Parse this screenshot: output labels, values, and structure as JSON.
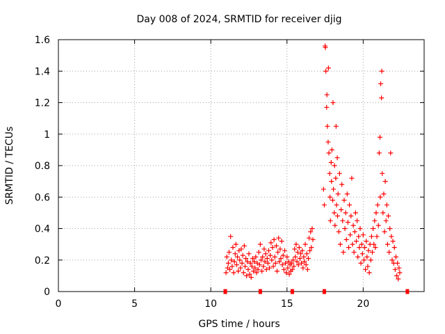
{
  "chart_data": {
    "type": "scatter",
    "title": "Day 008 of 2024, SRMTID for receiver djig",
    "xlabel": "GPS time / hours",
    "ylabel": "SRMTID / TECUs",
    "xlim": [
      0,
      24
    ],
    "ylim": [
      0,
      1.6
    ],
    "xticks": [
      0,
      5,
      10,
      15,
      20
    ],
    "yticks": [
      0,
      0.2,
      0.4,
      0.6,
      0.8,
      1,
      1.2,
      1.4,
      1.6
    ],
    "xtick_labels": [
      "0",
      "5",
      "10",
      "15",
      "20"
    ],
    "ytick_labels": [
      "0",
      "0.2",
      "0.4",
      "0.6",
      "0.8",
      "1",
      "1.2",
      "1.4",
      "1.6"
    ],
    "grid": true,
    "marker": "plus",
    "color": "#ff0000",
    "series": [
      {
        "name": "SRMTID",
        "points": [
          [
            11.0,
            0.12
          ],
          [
            11.05,
            0.22
          ],
          [
            11.1,
            0.15
          ],
          [
            11.15,
            0.18
          ],
          [
            11.2,
            0.25
          ],
          [
            11.25,
            0.14
          ],
          [
            11.3,
            0.35
          ],
          [
            11.35,
            0.2
          ],
          [
            11.4,
            0.16
          ],
          [
            11.45,
            0.28
          ],
          [
            11.5,
            0.12
          ],
          [
            11.55,
            0.19
          ],
          [
            11.6,
            0.24
          ],
          [
            11.65,
            0.3
          ],
          [
            11.7,
            0.17
          ],
          [
            11.75,
            0.22
          ],
          [
            11.8,
            0.13
          ],
          [
            11.85,
            0.26
          ],
          [
            11.9,
            0.2
          ],
          [
            11.95,
            0.15
          ],
          [
            12.0,
            0.27
          ],
          [
            12.05,
            0.18
          ],
          [
            12.1,
            0.23
          ],
          [
            12.15,
            0.12
          ],
          [
            12.2,
            0.29
          ],
          [
            12.25,
            0.16
          ],
          [
            12.3,
            0.21
          ],
          [
            12.35,
            0.1
          ],
          [
            12.4,
            0.19
          ],
          [
            12.45,
            0.14
          ],
          [
            12.5,
            0.24
          ],
          [
            12.55,
            0.11
          ],
          [
            12.6,
            0.18
          ],
          [
            12.65,
            0.09
          ],
          [
            12.7,
            0.16
          ],
          [
            12.75,
            0.21
          ],
          [
            12.8,
            0.13
          ],
          [
            12.85,
            0.19
          ],
          [
            12.9,
            0.15
          ],
          [
            12.95,
            0.22
          ],
          [
            13.0,
            0.12
          ],
          [
            13.05,
            0.18
          ],
          [
            13.1,
            0.14
          ],
          [
            13.15,
            0.25
          ],
          [
            13.2,
            0.17
          ],
          [
            13.25,
            0.3
          ],
          [
            13.3,
            0.2
          ],
          [
            13.35,
            0.13
          ],
          [
            13.4,
            0.22
          ],
          [
            13.45,
            0.16
          ],
          [
            13.5,
            0.27
          ],
          [
            13.55,
            0.19
          ],
          [
            13.6,
            0.24
          ],
          [
            13.65,
            0.14
          ],
          [
            13.7,
            0.21
          ],
          [
            13.75,
            0.18
          ],
          [
            13.8,
            0.26
          ],
          [
            13.85,
            0.15
          ],
          [
            13.9,
            0.23
          ],
          [
            13.95,
            0.31
          ],
          [
            14.0,
            0.2
          ],
          [
            14.05,
            0.28
          ],
          [
            14.1,
            0.16
          ],
          [
            14.15,
            0.33
          ],
          [
            14.2,
            0.22
          ],
          [
            14.25,
            0.18
          ],
          [
            14.3,
            0.29
          ],
          [
            14.35,
            0.13
          ],
          [
            14.4,
            0.25
          ],
          [
            14.45,
            0.34
          ],
          [
            14.5,
            0.19
          ],
          [
            14.55,
            0.27
          ],
          [
            14.6,
            0.21
          ],
          [
            14.65,
            0.32
          ],
          [
            14.7,
            0.17
          ],
          [
            14.75,
            0.23
          ],
          [
            14.8,
            0.14
          ],
          [
            14.85,
            0.26
          ],
          [
            14.9,
            0.18
          ],
          [
            14.95,
            0.12
          ],
          [
            15.0,
            0.22
          ],
          [
            15.05,
            0.15
          ],
          [
            15.1,
            0.19
          ],
          [
            15.15,
            0.11
          ],
          [
            15.2,
            0.17
          ],
          [
            15.25,
            0.13
          ],
          [
            15.3,
            0.18
          ],
          [
            15.35,
            0.14
          ],
          [
            15.4,
            0.2
          ],
          [
            15.45,
            0.16
          ],
          [
            15.5,
            0.27
          ],
          [
            15.55,
            0.22
          ],
          [
            15.6,
            0.3
          ],
          [
            15.65,
            0.19
          ],
          [
            15.7,
            0.25
          ],
          [
            15.75,
            0.17
          ],
          [
            15.8,
            0.28
          ],
          [
            15.85,
            0.21
          ],
          [
            15.9,
            0.24
          ],
          [
            15.95,
            0.18
          ],
          [
            16.0,
            0.26
          ],
          [
            16.05,
            0.15
          ],
          [
            16.1,
            0.22
          ],
          [
            16.15,
            0.19
          ],
          [
            16.2,
            0.3
          ],
          [
            16.25,
            0.17
          ],
          [
            16.3,
            0.24
          ],
          [
            16.35,
            0.14
          ],
          [
            16.4,
            0.21
          ],
          [
            16.45,
            0.34
          ],
          [
            16.5,
            0.26
          ],
          [
            16.55,
            0.38
          ],
          [
            16.6,
            0.28
          ],
          [
            16.65,
            0.4
          ],
          [
            16.7,
            0.33
          ],
          [
            17.4,
            0.65
          ],
          [
            17.45,
            0.55
          ],
          [
            17.5,
            1.56
          ],
          [
            17.52,
            1.55
          ],
          [
            17.55,
            1.4
          ],
          [
            17.6,
            1.17
          ],
          [
            17.62,
            1.25
          ],
          [
            17.65,
            1.05
          ],
          [
            17.7,
            0.95
          ],
          [
            17.72,
            1.42
          ],
          [
            17.75,
            0.88
          ],
          [
            17.8,
            0.75
          ],
          [
            17.82,
            0.6
          ],
          [
            17.85,
            0.45
          ],
          [
            17.9,
            0.82
          ],
          [
            17.92,
            0.7
          ],
          [
            17.95,
            0.9
          ],
          [
            18.0,
            0.58
          ],
          [
            18.02,
            1.2
          ],
          [
            18.05,
            0.65
          ],
          [
            18.1,
            0.5
          ],
          [
            18.12,
            0.8
          ],
          [
            18.15,
            0.42
          ],
          [
            18.2,
            0.72
          ],
          [
            18.22,
            1.05
          ],
          [
            18.25,
            0.55
          ],
          [
            18.3,
            0.85
          ],
          [
            18.32,
            0.48
          ],
          [
            18.35,
            0.62
          ],
          [
            18.4,
            0.38
          ],
          [
            18.45,
            0.75
          ],
          [
            18.5,
            0.3
          ],
          [
            18.55,
            0.52
          ],
          [
            18.6,
            0.68
          ],
          [
            18.65,
            0.45
          ],
          [
            18.7,
            0.25
          ],
          [
            18.75,
            0.58
          ],
          [
            18.8,
            0.4
          ],
          [
            18.85,
            0.5
          ],
          [
            18.9,
            0.33
          ],
          [
            18.95,
            0.62
          ],
          [
            19.0,
            0.44
          ],
          [
            19.05,
            0.28
          ],
          [
            19.1,
            0.55
          ],
          [
            19.15,
            0.36
          ],
          [
            19.2,
            0.48
          ],
          [
            19.25,
            0.72
          ],
          [
            19.3,
            0.3
          ],
          [
            19.35,
            0.42
          ],
          [
            19.4,
            0.25
          ],
          [
            19.45,
            0.38
          ],
          [
            19.5,
            0.5
          ],
          [
            19.55,
            0.32
          ],
          [
            19.6,
            0.45
          ],
          [
            19.65,
            0.22
          ],
          [
            19.7,
            0.35
          ],
          [
            19.75,
            0.28
          ],
          [
            19.8,
            0.4
          ],
          [
            19.85,
            0.18
          ],
          [
            19.9,
            0.3
          ],
          [
            19.95,
            0.24
          ],
          [
            20.0,
            0.36
          ],
          [
            20.05,
            0.2
          ],
          [
            20.1,
            0.28
          ],
          [
            20.15,
            0.14
          ],
          [
            20.2,
            0.32
          ],
          [
            20.25,
            0.22
          ],
          [
            20.3,
            0.16
          ],
          [
            20.35,
            0.26
          ],
          [
            20.4,
            0.12
          ],
          [
            20.45,
            0.3
          ],
          [
            20.5,
            0.2
          ],
          [
            20.55,
            0.35
          ],
          [
            20.6,
            0.25
          ],
          [
            20.65,
            0.4
          ],
          [
            20.7,
            0.3
          ],
          [
            20.75,
            0.45
          ],
          [
            20.8,
            0.28
          ],
          [
            20.85,
            0.5
          ],
          [
            20.9,
            0.35
          ],
          [
            20.95,
            0.55
          ],
          [
            21.0,
            0.42
          ],
          [
            21.05,
            0.88
          ],
          [
            21.1,
            0.98
          ],
          [
            21.12,
            0.6
          ],
          [
            21.15,
            1.32
          ],
          [
            21.2,
            1.23
          ],
          [
            21.22,
            1.4
          ],
          [
            21.25,
            0.75
          ],
          [
            21.3,
            0.5
          ],
          [
            21.35,
            0.62
          ],
          [
            21.4,
            0.38
          ],
          [
            21.45,
            0.7
          ],
          [
            21.5,
            0.45
          ],
          [
            21.55,
            0.55
          ],
          [
            21.6,
            0.3
          ],
          [
            21.65,
            0.48
          ],
          [
            21.7,
            0.25
          ],
          [
            21.75,
            0.4
          ],
          [
            21.8,
            0.88
          ],
          [
            21.85,
            0.35
          ],
          [
            21.9,
            0.2
          ],
          [
            21.95,
            0.32
          ],
          [
            22.0,
            0.18
          ],
          [
            22.05,
            0.28
          ],
          [
            22.1,
            0.14
          ],
          [
            22.15,
            0.22
          ],
          [
            22.2,
            0.1
          ],
          [
            22.25,
            0.18
          ],
          [
            22.3,
            0.08
          ],
          [
            22.35,
            0.15
          ],
          [
            22.4,
            0.12
          ]
        ]
      }
    ],
    "bottom_markers_x": [
      10.95,
      13.25,
      15.35,
      17.45,
      22.9
    ]
  }
}
